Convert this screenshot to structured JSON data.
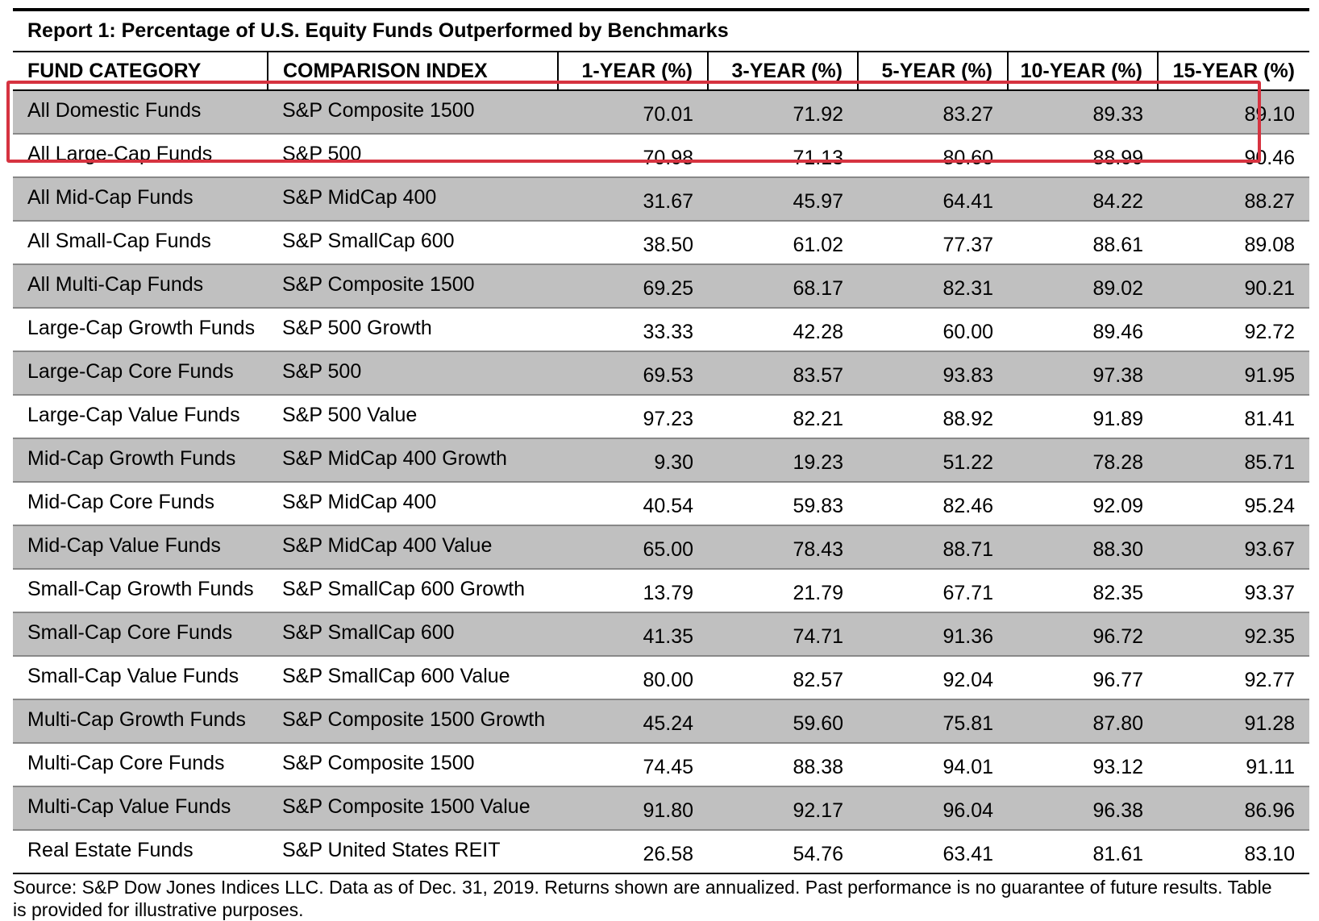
{
  "report": {
    "title": "Report 1: Percentage of U.S. Equity Funds Outperformed by Benchmarks",
    "headers": [
      "FUND CATEGORY",
      "COMPARISON INDEX",
      "1-YEAR (%)",
      "3-YEAR (%)",
      "5-YEAR (%)",
      "10-YEAR (%)",
      "15-YEAR (%)"
    ],
    "rows": [
      {
        "category": "All Domestic Funds",
        "index": "S&P Composite 1500",
        "y1": "70.01",
        "y3": "71.92",
        "y5": "83.27",
        "y10": "89.33",
        "y15": "89.10"
      },
      {
        "category": "All Large-Cap Funds",
        "index": "S&P 500",
        "y1": "70.98",
        "y3": "71.13",
        "y5": "80.60",
        "y10": "88.99",
        "y15": "90.46"
      },
      {
        "category": "All Mid-Cap Funds",
        "index": "S&P MidCap 400",
        "y1": "31.67",
        "y3": "45.97",
        "y5": "64.41",
        "y10": "84.22",
        "y15": "88.27"
      },
      {
        "category": "All Small-Cap Funds",
        "index": "S&P SmallCap 600",
        "y1": "38.50",
        "y3": "61.02",
        "y5": "77.37",
        "y10": "88.61",
        "y15": "89.08"
      },
      {
        "category": "All Multi-Cap Funds",
        "index": "S&P Composite 1500",
        "y1": "69.25",
        "y3": "68.17",
        "y5": "82.31",
        "y10": "89.02",
        "y15": "90.21"
      },
      {
        "category": "Large-Cap Growth Funds",
        "index": "S&P 500 Growth",
        "y1": "33.33",
        "y3": "42.28",
        "y5": "60.00",
        "y10": "89.46",
        "y15": "92.72"
      },
      {
        "category": "Large-Cap Core Funds",
        "index": "S&P 500",
        "y1": "69.53",
        "y3": "83.57",
        "y5": "93.83",
        "y10": "97.38",
        "y15": "91.95"
      },
      {
        "category": "Large-Cap Value Funds",
        "index": "S&P 500 Value",
        "y1": "97.23",
        "y3": "82.21",
        "y5": "88.92",
        "y10": "91.89",
        "y15": "81.41"
      },
      {
        "category": "Mid-Cap Growth Funds",
        "index": "S&P MidCap 400 Growth",
        "y1": "9.30",
        "y3": "19.23",
        "y5": "51.22",
        "y10": "78.28",
        "y15": "85.71"
      },
      {
        "category": "Mid-Cap Core Funds",
        "index": "S&P MidCap 400",
        "y1": "40.54",
        "y3": "59.83",
        "y5": "82.46",
        "y10": "92.09",
        "y15": "95.24"
      },
      {
        "category": "Mid-Cap Value Funds",
        "index": "S&P MidCap 400 Value",
        "y1": "65.00",
        "y3": "78.43",
        "y5": "88.71",
        "y10": "88.30",
        "y15": "93.67"
      },
      {
        "category": "Small-Cap Growth Funds",
        "index": "S&P SmallCap 600 Growth",
        "y1": "13.79",
        "y3": "21.79",
        "y5": "67.71",
        "y10": "82.35",
        "y15": "93.37"
      },
      {
        "category": "Small-Cap Core Funds",
        "index": "S&P SmallCap 600",
        "y1": "41.35",
        "y3": "74.71",
        "y5": "91.36",
        "y10": "96.72",
        "y15": "92.35"
      },
      {
        "category": "Small-Cap Value Funds",
        "index": "S&P SmallCap 600 Value",
        "y1": "80.00",
        "y3": "82.57",
        "y5": "92.04",
        "y10": "96.77",
        "y15": "92.77"
      },
      {
        "category": "Multi-Cap Growth Funds",
        "index": "S&P Composite 1500 Growth",
        "y1": "45.24",
        "y3": "59.60",
        "y5": "75.81",
        "y10": "87.80",
        "y15": "91.28"
      },
      {
        "category": "Multi-Cap Core Funds",
        "index": "S&P Composite 1500",
        "y1": "74.45",
        "y3": "88.38",
        "y5": "94.01",
        "y10": "93.12",
        "y15": "91.11"
      },
      {
        "category": "Multi-Cap Value Funds",
        "index": "S&P Composite 1500 Value",
        "y1": "91.80",
        "y3": "92.17",
        "y5": "96.04",
        "y10": "96.38",
        "y15": "86.96"
      },
      {
        "category": "Real Estate Funds",
        "index": "S&P United States REIT",
        "y1": "26.58",
        "y3": "54.76",
        "y5": "63.41",
        "y10": "81.61",
        "y15": "83.10"
      }
    ],
    "footnote": "Source: S&P Dow Jones Indices LLC.  Data as of Dec. 31, 2019.  Returns shown are annualized.  Past performance is no guarantee of future results.  Table is provided for illustrative purposes."
  },
  "style": {
    "shaded_row_color": "#c0c0c0",
    "highlight_color": "#d63340",
    "highlighted_rows": [
      "All Domestic Funds",
      "All Large-Cap Funds"
    ]
  }
}
